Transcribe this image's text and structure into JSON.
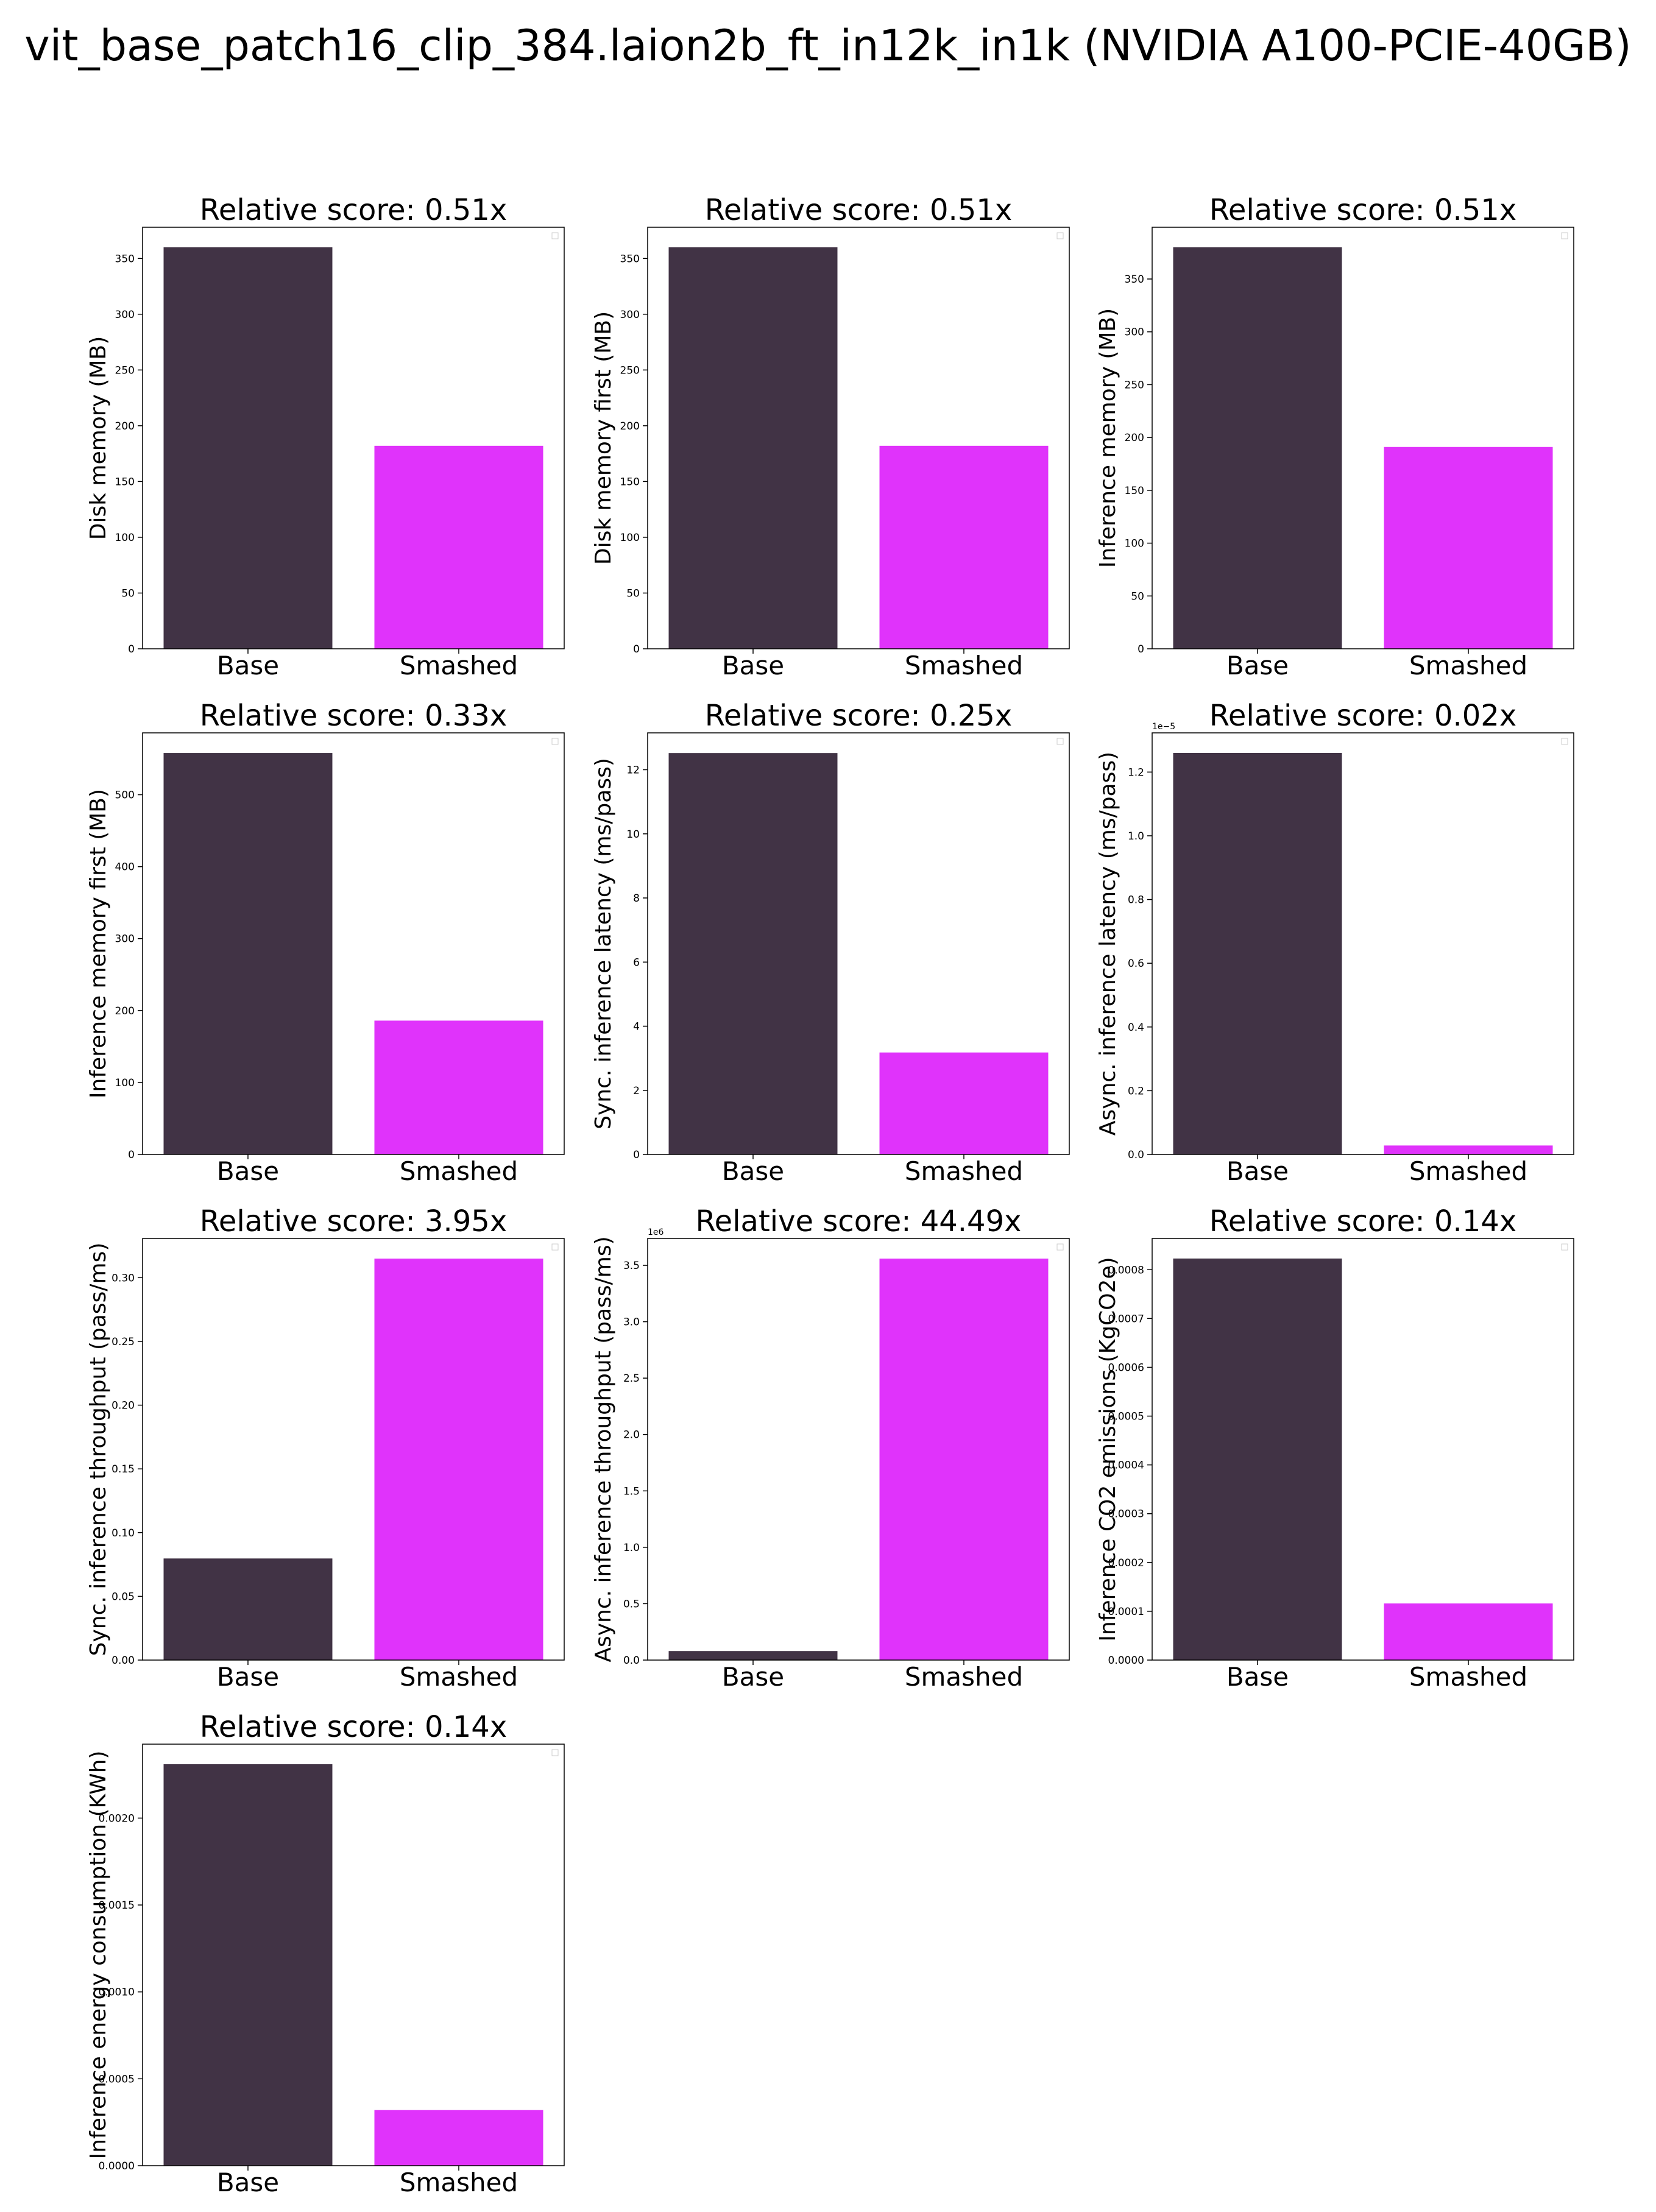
{
  "figure": {
    "title": "vit_base_patch16_clip_384.laion2b_ft_in12k_in1k (NVIDIA A100-PCIE-40GB)"
  },
  "colors": {
    "base": "#413345",
    "smashed": "#e033fb",
    "axis": "#000000"
  },
  "chart_data": [
    {
      "type": "bar",
      "title": "Relative score: 0.51x",
      "categories": [
        "Base",
        "Smashed"
      ],
      "values": [
        360,
        182
      ],
      "ylabel": "Disk memory (MB)",
      "xlabel": "",
      "ylim": [
        0,
        378
      ],
      "yticks": [
        0,
        50,
        100,
        150,
        200,
        250,
        300,
        350
      ],
      "ytick_labels": [
        "0",
        "50",
        "100",
        "150",
        "200",
        "250",
        "300",
        "350"
      ],
      "grid": false
    },
    {
      "type": "bar",
      "title": "Relative score: 0.51x",
      "categories": [
        "Base",
        "Smashed"
      ],
      "values": [
        360,
        182
      ],
      "ylabel": "Disk memory first (MB)",
      "xlabel": "",
      "ylim": [
        0,
        378
      ],
      "yticks": [
        0,
        50,
        100,
        150,
        200,
        250,
        300,
        350
      ],
      "ytick_labels": [
        "0",
        "50",
        "100",
        "150",
        "200",
        "250",
        "300",
        "350"
      ],
      "grid": false
    },
    {
      "type": "bar",
      "title": "Relative score: 0.51x",
      "categories": [
        "Base",
        "Smashed"
      ],
      "values": [
        380,
        191
      ],
      "ylabel": "Inference memory (MB)",
      "xlabel": "",
      "ylim": [
        0,
        399
      ],
      "yticks": [
        0,
        50,
        100,
        150,
        200,
        250,
        300,
        350
      ],
      "ytick_labels": [
        "0",
        "50",
        "100",
        "150",
        "200",
        "250",
        "300",
        "350"
      ],
      "grid": false
    },
    {
      "type": "bar",
      "title": "Relative score: 0.33x",
      "categories": [
        "Base",
        "Smashed"
      ],
      "values": [
        558,
        186
      ],
      "ylabel": "Inference memory first (MB)",
      "xlabel": "",
      "ylim": [
        0,
        586
      ],
      "yticks": [
        0,
        100,
        200,
        300,
        400,
        500
      ],
      "ytick_labels": [
        "0",
        "100",
        "200",
        "300",
        "400",
        "500"
      ],
      "grid": false
    },
    {
      "type": "bar",
      "title": "Relative score: 0.25x",
      "categories": [
        "Base",
        "Smashed"
      ],
      "values": [
        12.52,
        3.18
      ],
      "ylabel": "Sync. inference latency (ms/pass)",
      "xlabel": "",
      "ylim": [
        0,
        13.15
      ],
      "yticks": [
        0,
        2,
        4,
        6,
        8,
        10,
        12
      ],
      "ytick_labels": [
        "0",
        "2",
        "4",
        "6",
        "8",
        "10",
        "12"
      ],
      "grid": false
    },
    {
      "type": "bar",
      "title": "Relative score: 0.02x",
      "categories": [
        "Base",
        "Smashed"
      ],
      "values": [
        1.26,
        0.028
      ],
      "ylabel": "Async. inference latency (ms/pass)",
      "xlabel": "",
      "y_multiplier": "1e−5",
      "ylim": [
        0,
        1.323
      ],
      "yticks": [
        0,
        0.2,
        0.4,
        0.6,
        0.8,
        1.0,
        1.2
      ],
      "ytick_labels": [
        "0.0",
        "0.2",
        "0.4",
        "0.6",
        "0.8",
        "1.0",
        "1.2"
      ],
      "grid": false
    },
    {
      "type": "bar",
      "title": "Relative score: 3.95x",
      "categories": [
        "Base",
        "Smashed"
      ],
      "values": [
        0.0797,
        0.315
      ],
      "ylabel": "Sync. inference throughput (pass/ms)",
      "xlabel": "",
      "ylim": [
        0,
        0.33075
      ],
      "yticks": [
        0,
        0.05,
        0.1,
        0.15,
        0.2,
        0.25,
        0.3
      ],
      "ytick_labels": [
        "0.00",
        "0.05",
        "0.10",
        "0.15",
        "0.20",
        "0.25",
        "0.30"
      ],
      "grid": false
    },
    {
      "type": "bar",
      "title": "Relative score: 44.49x",
      "categories": [
        "Base",
        "Smashed"
      ],
      "values": [
        0.08,
        3.56
      ],
      "ylabel": "Async. inference throughput (pass/ms)",
      "xlabel": "",
      "y_multiplier": "1e6",
      "ylim": [
        0,
        3.738
      ],
      "yticks": [
        0,
        0.5,
        1.0,
        1.5,
        2.0,
        2.5,
        3.0,
        3.5
      ],
      "ytick_labels": [
        "0.0",
        "0.5",
        "1.0",
        "1.5",
        "2.0",
        "2.5",
        "3.0",
        "3.5"
      ],
      "grid": false
    },
    {
      "type": "bar",
      "title": "Relative score: 0.14x",
      "categories": [
        "Base",
        "Smashed"
      ],
      "values": [
        0.000823,
        0.000116
      ],
      "ylabel": "Inference CO2 emissions (KgCO2e)",
      "xlabel": "",
      "ylim": [
        0,
        0.000864
      ],
      "yticks": [
        0,
        0.0001,
        0.0002,
        0.0003,
        0.0004,
        0.0005,
        0.0006,
        0.0007,
        0.0008
      ],
      "ytick_labels": [
        "0.0000",
        "0.0001",
        "0.0002",
        "0.0003",
        "0.0004",
        "0.0005",
        "0.0006",
        "0.0007",
        "0.0008"
      ],
      "grid": false
    },
    {
      "type": "bar",
      "title": "Relative score: 0.14x",
      "categories": [
        "Base",
        "Smashed"
      ],
      "values": [
        0.00231,
        0.00032
      ],
      "ylabel": "Inference energy consumption (KWh)",
      "xlabel": "",
      "ylim": [
        0,
        0.0024255
      ],
      "yticks": [
        0,
        0.0005,
        0.001,
        0.0015,
        0.002
      ],
      "ytick_labels": [
        "0.0000",
        "0.0005",
        "0.0010",
        "0.0015",
        "0.0020"
      ],
      "grid": false
    }
  ]
}
